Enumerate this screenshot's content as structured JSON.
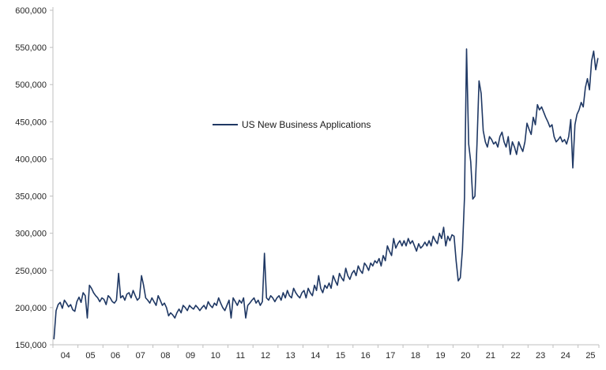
{
  "chart_data": {
    "type": "line",
    "title": "",
    "legend": "US New Business Applications",
    "line_color": "#1F3864",
    "axis_color": "#BFBFBF",
    "text_color": "#262626",
    "ylim": [
      150000,
      600000
    ],
    "legend_position": "center-left-of-plot",
    "grid": false,
    "frequency": "monthly",
    "start_year": 2004,
    "y_ticks": [
      {
        "label": "600,000",
        "value": 600000
      },
      {
        "label": "550,000",
        "value": 550000
      },
      {
        "label": "500,000",
        "value": 500000
      },
      {
        "label": "450,000",
        "value": 450000
      },
      {
        "label": "400,000",
        "value": 400000
      },
      {
        "label": "350,000",
        "value": 350000
      },
      {
        "label": "300,000",
        "value": 300000
      },
      {
        "label": "250,000",
        "value": 250000
      },
      {
        "label": "200,000",
        "value": 200000
      },
      {
        "label": "150,000",
        "value": 150000
      }
    ],
    "x_ticks": [
      "04",
      "05",
      "06",
      "07",
      "08",
      "09",
      "10",
      "11",
      "12",
      "13",
      "14",
      "15",
      "16",
      "17",
      "18",
      "19",
      "20",
      "21",
      "22",
      "23",
      "24",
      "25"
    ],
    "values": [
      158000,
      196000,
      204000,
      207000,
      199000,
      210000,
      206000,
      201000,
      204000,
      197000,
      195000,
      208000,
      214000,
      207000,
      220000,
      216000,
      186000,
      230000,
      226000,
      220000,
      216000,
      213000,
      208000,
      213000,
      211000,
      204000,
      216000,
      213000,
      208000,
      206000,
      210000,
      246000,
      213000,
      216000,
      210000,
      218000,
      220000,
      213000,
      223000,
      216000,
      210000,
      213000,
      243000,
      230000,
      213000,
      210000,
      206000,
      213000,
      208000,
      203000,
      216000,
      210000,
      203000,
      206000,
      200000,
      189000,
      193000,
      190000,
      186000,
      193000,
      198000,
      193000,
      203000,
      200000,
      196000,
      203000,
      200000,
      198000,
      203000,
      200000,
      196000,
      200000,
      203000,
      198000,
      208000,
      203000,
      200000,
      206000,
      203000,
      213000,
      206000,
      200000,
      196000,
      203000,
      210000,
      186000,
      213000,
      208000,
      203000,
      210000,
      206000,
      213000,
      186000,
      203000,
      206000,
      210000,
      213000,
      206000,
      210000,
      203000,
      208000,
      273000,
      213000,
      210000,
      216000,
      213000,
      208000,
      213000,
      216000,
      210000,
      220000,
      213000,
      223000,
      216000,
      213000,
      226000,
      220000,
      216000,
      213000,
      220000,
      223000,
      213000,
      226000,
      220000,
      216000,
      230000,
      223000,
      243000,
      226000,
      220000,
      230000,
      226000,
      233000,
      226000,
      243000,
      236000,
      230000,
      246000,
      240000,
      236000,
      253000,
      243000,
      238000,
      246000,
      250000,
      243000,
      256000,
      250000,
      246000,
      260000,
      256000,
      250000,
      260000,
      256000,
      263000,
      260000,
      266000,
      256000,
      270000,
      263000,
      283000,
      276000,
      270000,
      293000,
      280000,
      286000,
      290000,
      283000,
      290000,
      283000,
      293000,
      286000,
      290000,
      283000,
      276000,
      286000,
      280000,
      283000,
      288000,
      283000,
      290000,
      283000,
      296000,
      290000,
      286000,
      300000,
      293000,
      308000,
      283000,
      296000,
      290000,
      298000,
      296000,
      263000,
      236000,
      240000,
      278000,
      348000,
      548000,
      420000,
      396000,
      346000,
      350000,
      420000,
      505000,
      488000,
      438000,
      423000,
      416000,
      430000,
      426000,
      420000,
      423000,
      416000,
      430000,
      436000,
      423000,
      416000,
      430000,
      406000,
      423000,
      416000,
      406000,
      423000,
      416000,
      410000,
      423000,
      448000,
      440000,
      433000,
      456000,
      446000,
      473000,
      466000,
      470000,
      463000,
      456000,
      450000,
      443000,
      446000,
      430000,
      423000,
      426000,
      430000,
      423000,
      426000,
      420000,
      430000,
      453000,
      388000,
      446000,
      460000,
      466000,
      476000,
      470000,
      496000,
      508000,
      493000,
      532000,
      545000,
      520000,
      535000
    ]
  }
}
